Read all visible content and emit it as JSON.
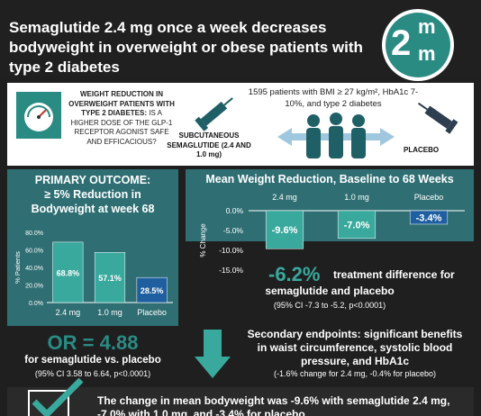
{
  "header": {
    "headline": "Semaglutide 2.4 mg once a week decreases bodyweight in overweight or obese patients with type 2 diabetes",
    "logo": {
      "big": "2",
      "m1": "m",
      "m2": "m"
    }
  },
  "design": {
    "question_bold": "WEIGHT REDUCTION IN OVERWEIGHT PATIENTS WITH TYPE 2 DIABETES:",
    "question_rest": " IS A HIGHER DOSE OF THE GLP-1 RECEPTOR AGONIST SAFE AND EFFICACIOUS?",
    "population": "1595 patients with BMI ≥ 27 kg/m², HbA1c 7-10%, and type 2 diabetes",
    "sema_label": "SUBCUTANEOUS SEMAGLUTIDE (2.4 AND 1.0 mg)",
    "placebo_label": "PLACEBO",
    "colors": {
      "teal": "#2a8b83",
      "dark_teal": "#2f6f73",
      "arrow": "#3aa99d"
    }
  },
  "primary": {
    "title_line1": "PRIMARY OUTCOME:",
    "title_line2": "≥ 5% Reduction in",
    "title_line3": "Bodyweight at week 68"
  },
  "or_block": {
    "big": "OR = 4.88",
    "sub": "for semaglutide vs. placebo",
    "ci": "(95% CI 3.58 to 6.64, p<0.0001)"
  },
  "mean": {
    "title": "Mean Weight Reduction, Baseline to 68 Weeks",
    "diff_big": "-6.2%",
    "diff_text1": "treatment difference for",
    "diff_text2": "semaglutide and placebo",
    "diff_ci": "(95% CI -7.3 to -5.2, p<0.0001)"
  },
  "secondary": {
    "line1": "Secondary endpoints: significant benefits",
    "line2": "in waist circumference, systolic blood",
    "line3": "pressure, and HbA1c",
    "ci": "(-1.6% change for 2.4 mg, -0.4% for placebo)"
  },
  "conclusion": {
    "text": "The change in mean bodyweight was -9.6% with semaglutide 2.4 mg, -7.0% with 1.0 mg, and -3.4% for placebo"
  },
  "chart_data": [
    {
      "type": "bar",
      "categories": [
        "2.4 mg",
        "1.0 mg",
        "Placebo"
      ],
      "values": [
        68.8,
        57.1,
        28.5
      ],
      "value_labels": [
        "68.8%",
        "57.1%",
        "28.5%"
      ],
      "ylabel": "% Patients",
      "ylim": [
        0,
        80
      ],
      "yticks": [
        "0.0%",
        "20.0%",
        "40.0%",
        "60.0%",
        "80.0%"
      ],
      "colors": [
        "#3aa99d",
        "#3aa99d",
        "#1f5fa0"
      ]
    },
    {
      "type": "bar",
      "categories": [
        "2.4 mg",
        "1.0 mg",
        "Placebo"
      ],
      "values": [
        -9.6,
        -7.0,
        -3.4
      ],
      "value_labels": [
        "-9.6%",
        "-7.0%",
        "-3.4%"
      ],
      "ylabel": "% Change",
      "ylim": [
        -15,
        0
      ],
      "yticks": [
        "0.0%",
        "-5.0%",
        "-10.0%",
        "-15.0%"
      ],
      "colors": [
        "#3aa99d",
        "#3aa99d",
        "#1f5fa0"
      ]
    }
  ]
}
